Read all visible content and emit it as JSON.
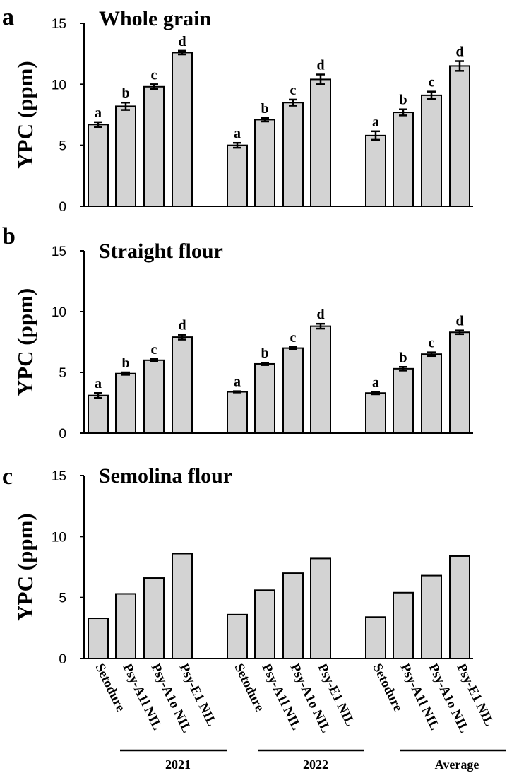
{
  "chart_data": {
    "type": "bar",
    "categories": [
      "Setodure",
      "Psy-A1l NIL",
      "Psy-A1o NIL",
      "Psy-E1 NIL",
      "Setodure",
      "Psy-A1l NIL",
      "Psy-A1o NIL",
      "Psy-E1 NIL",
      "Setodure",
      "Psy-A1l NIL",
      "Psy-A1o NIL",
      "Psy-E1 NIL"
    ],
    "groups": [
      "2021",
      "2022",
      "Average"
    ],
    "ylabel": "YPC (ppm)",
    "ylim": [
      0,
      15
    ],
    "yticks": [
      "0",
      "5",
      "10",
      "15"
    ],
    "panels": [
      {
        "letter": "a",
        "title": "Whole grain",
        "values": [
          6.7,
          8.2,
          9.8,
          12.6,
          5.0,
          7.1,
          8.5,
          10.4,
          5.8,
          7.7,
          9.1,
          11.5
        ],
        "errors": [
          0.2,
          0.3,
          0.2,
          0.15,
          0.2,
          0.15,
          0.25,
          0.4,
          0.35,
          0.25,
          0.3,
          0.4
        ],
        "letters": [
          "a",
          "b",
          "c",
          "d",
          "a",
          "b",
          "c",
          "d",
          "a",
          "b",
          "c",
          "d"
        ]
      },
      {
        "letter": "b",
        "title": "Straight flour",
        "values": [
          3.1,
          4.9,
          6.0,
          7.9,
          3.4,
          5.7,
          7.0,
          8.8,
          3.3,
          5.3,
          6.5,
          8.3
        ],
        "errors": [
          0.2,
          0.1,
          0.1,
          0.2,
          0.05,
          0.1,
          0.1,
          0.2,
          0.1,
          0.15,
          0.15,
          0.15
        ],
        "letters": [
          "a",
          "b",
          "c",
          "d",
          "a",
          "b",
          "c",
          "d",
          "a",
          "b",
          "c",
          "d"
        ]
      },
      {
        "letter": "c",
        "title": "Semolina flour",
        "values": [
          3.3,
          5.3,
          6.6,
          8.6,
          3.6,
          5.6,
          7.0,
          8.2,
          3.4,
          5.4,
          6.8,
          8.4
        ],
        "errors": [],
        "letters": []
      }
    ]
  }
}
